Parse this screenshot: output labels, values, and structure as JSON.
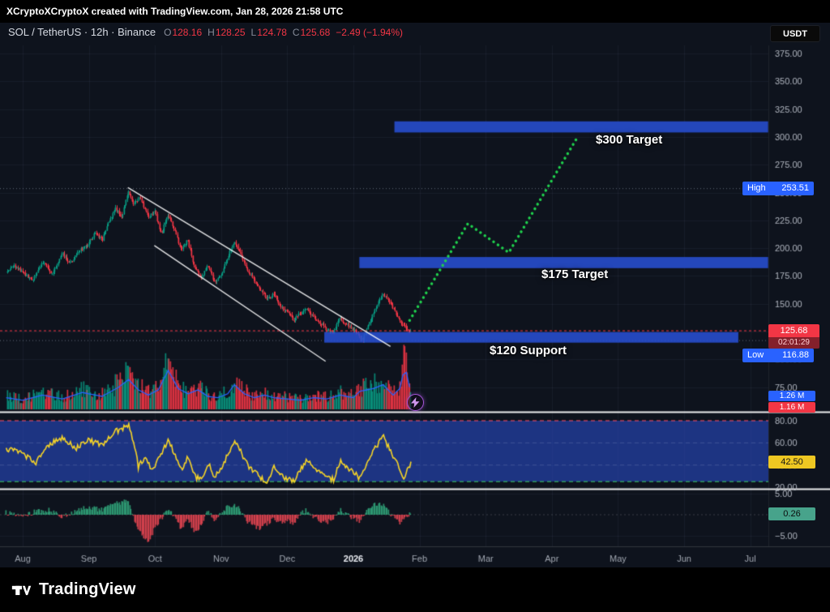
{
  "header": {
    "attribution": "XCryptoXCryptoX created with TradingView.com, Jan 28, 2026 21:58 UTC"
  },
  "symbol_bar": {
    "title_line": "SOL / TetherUS · 12h · Binance",
    "ohlc": {
      "o_label": "O",
      "o": "128.16",
      "h_label": "H",
      "h": "128.25",
      "l_label": "L",
      "l": "124.78",
      "c_label": "C",
      "c": "125.68"
    },
    "change": "−2.49 (−1.94%)",
    "currency_button": "USDT"
  },
  "badges": {
    "high_label": "High",
    "high_value": "253.51",
    "low_label": "Low",
    "low_value": "116.88",
    "price_value": "125.68",
    "countdown": "02:01:29",
    "volume_ma": "1.26 M",
    "volume_current": "1.16 M",
    "rsi_value": "42.50",
    "hist_value": "0.26"
  },
  "footer": {
    "brand": "TradingView"
  },
  "colors": {
    "chart_bg": "#0e131d",
    "grid": "rgba(140,155,190,0.08)",
    "up": "#089981",
    "down": "#f23645",
    "zone": "rgba(40,78,210,0.88)",
    "rsi_band": "rgba(41,80,214,0.55)",
    "rsi_line": "#f5d327",
    "rsi_upper_line": "#ff4d6a",
    "rsi_lower_line": "#3ecf62",
    "projection": "#1fd24d",
    "vol_ma": "#2962ff",
    "hist_up": "#2f9e77",
    "hist_down": "#dd4450",
    "axis_text": "#b0b5bf",
    "accent_blue": "#2962ff",
    "accent_red": "#f23645"
  },
  "chart_data": {
    "type": "candlestick",
    "symbol": "SOL/USDT",
    "interval": "12h",
    "t_unit": "months_from_aug_2025",
    "x_axis": {
      "months": [
        {
          "t": 0,
          "label": "Aug"
        },
        {
          "t": 1,
          "label": "Sep"
        },
        {
          "t": 2,
          "label": "Oct"
        },
        {
          "t": 3,
          "label": "Nov"
        },
        {
          "t": 4,
          "label": "Dec"
        },
        {
          "t": 5,
          "label": "2026",
          "strong": true
        },
        {
          "t": 6,
          "label": "Feb"
        },
        {
          "t": 7,
          "label": "Mar"
        },
        {
          "t": 8,
          "label": "Apr"
        },
        {
          "t": 9,
          "label": "May"
        },
        {
          "t": 10,
          "label": "Jun"
        },
        {
          "t": 11,
          "label": "Jul"
        }
      ]
    },
    "price_axis": {
      "ticks": [
        375,
        350,
        325,
        300,
        275,
        250,
        225,
        200,
        175,
        150,
        125,
        100,
        75
      ],
      "high": 253.51,
      "low": 116.88,
      "last": 125.68
    },
    "price_path": [
      [
        -0.25,
        178
      ],
      [
        -0.12,
        184
      ],
      [
        0,
        179
      ],
      [
        0.15,
        170
      ],
      [
        0.3,
        187
      ],
      [
        0.45,
        177
      ],
      [
        0.6,
        195
      ],
      [
        0.72,
        186
      ],
      [
        0.85,
        197
      ],
      [
        1,
        204
      ],
      [
        1.1,
        214
      ],
      [
        1.2,
        207
      ],
      [
        1.3,
        222
      ],
      [
        1.4,
        236
      ],
      [
        1.5,
        229
      ],
      [
        1.6,
        251
      ],
      [
        1.68,
        240
      ],
      [
        1.78,
        246
      ],
      [
        1.9,
        228
      ],
      [
        2,
        233
      ],
      [
        2.1,
        212
      ],
      [
        2.2,
        230
      ],
      [
        2.3,
        216
      ],
      [
        2.4,
        198
      ],
      [
        2.5,
        207
      ],
      [
        2.6,
        183
      ],
      [
        2.7,
        172
      ],
      [
        2.8,
        185
      ],
      [
        2.9,
        170
      ],
      [
        3,
        175
      ],
      [
        3.1,
        191
      ],
      [
        3.2,
        207
      ],
      [
        3.3,
        195
      ],
      [
        3.4,
        181
      ],
      [
        3.5,
        171
      ],
      [
        3.6,
        163
      ],
      [
        3.7,
        154
      ],
      [
        3.8,
        159
      ],
      [
        3.9,
        148
      ],
      [
        4,
        143
      ],
      [
        4.1,
        135
      ],
      [
        4.2,
        141
      ],
      [
        4.3,
        146
      ],
      [
        4.4,
        138
      ],
      [
        4.5,
        133
      ],
      [
        4.6,
        127
      ],
      [
        4.7,
        124
      ],
      [
        4.8,
        137
      ],
      [
        4.9,
        131
      ],
      [
        5,
        128
      ],
      [
        5.08,
        121
      ],
      [
        5.15,
        118
      ],
      [
        5.25,
        134
      ],
      [
        5.35,
        147
      ],
      [
        5.45,
        159
      ],
      [
        5.52,
        154
      ],
      [
        5.6,
        146
      ],
      [
        5.68,
        138
      ],
      [
        5.76,
        130
      ],
      [
        5.83,
        127
      ],
      [
        5.87,
        125.7
      ]
    ],
    "volume_path_millions": [
      [
        -0.25,
        0.9
      ],
      [
        0,
        0.7
      ],
      [
        0.3,
        1.1
      ],
      [
        0.6,
        0.8
      ],
      [
        0.9,
        1.3
      ],
      [
        1.2,
        1
      ],
      [
        1.45,
        1.7
      ],
      [
        1.6,
        2.3
      ],
      [
        1.75,
        1.5
      ],
      [
        1.9,
        1.1
      ],
      [
        2.05,
        1.5
      ],
      [
        2.2,
        3
      ],
      [
        2.35,
        1.6
      ],
      [
        2.5,
        1.2
      ],
      [
        2.65,
        1.5
      ],
      [
        2.8,
        1
      ],
      [
        2.95,
        0.9
      ],
      [
        3.1,
        1.2
      ],
      [
        3.2,
        1.9
      ],
      [
        3.35,
        1.2
      ],
      [
        3.5,
        0.9
      ],
      [
        3.65,
        1.1
      ],
      [
        3.8,
        0.9
      ],
      [
        4,
        0.8
      ],
      [
        4.2,
        0.7
      ],
      [
        4.4,
        0.9
      ],
      [
        4.6,
        0.8
      ],
      [
        4.8,
        1.1
      ],
      [
        5,
        0.9
      ],
      [
        5.1,
        1.4
      ],
      [
        5.3,
        1.6
      ],
      [
        5.45,
        1.9
      ],
      [
        5.6,
        1.1
      ],
      [
        5.7,
        1.6
      ],
      [
        5.78,
        3.3
      ],
      [
        5.87,
        1.26
      ]
    ],
    "rsi_path": [
      [
        -0.25,
        55
      ],
      [
        0,
        50
      ],
      [
        0.2,
        42
      ],
      [
        0.4,
        58
      ],
      [
        0.6,
        65
      ],
      [
        0.8,
        55
      ],
      [
        1,
        62
      ],
      [
        1.2,
        58
      ],
      [
        1.4,
        70
      ],
      [
        1.6,
        76
      ],
      [
        1.7,
        55
      ],
      [
        1.75,
        38
      ],
      [
        1.85,
        48
      ],
      [
        1.95,
        35
      ],
      [
        2.05,
        45
      ],
      [
        2.2,
        62
      ],
      [
        2.3,
        50
      ],
      [
        2.4,
        35
      ],
      [
        2.5,
        47
      ],
      [
        2.6,
        30
      ],
      [
        2.7,
        26
      ],
      [
        2.8,
        42
      ],
      [
        2.9,
        30
      ],
      [
        3,
        36
      ],
      [
        3.1,
        50
      ],
      [
        3.2,
        62
      ],
      [
        3.3,
        52
      ],
      [
        3.4,
        40
      ],
      [
        3.5,
        34
      ],
      [
        3.6,
        28
      ],
      [
        3.7,
        25
      ],
      [
        3.8,
        38
      ],
      [
        3.9,
        30
      ],
      [
        4,
        28
      ],
      [
        4.1,
        25
      ],
      [
        4.2,
        36
      ],
      [
        4.3,
        45
      ],
      [
        4.4,
        38
      ],
      [
        4.5,
        33
      ],
      [
        4.6,
        29
      ],
      [
        4.7,
        27
      ],
      [
        4.8,
        44
      ],
      [
        4.9,
        38
      ],
      [
        5,
        34
      ],
      [
        5.1,
        27
      ],
      [
        5.2,
        40
      ],
      [
        5.3,
        52
      ],
      [
        5.4,
        62
      ],
      [
        5.45,
        68
      ],
      [
        5.5,
        60
      ],
      [
        5.6,
        48
      ],
      [
        5.7,
        36
      ],
      [
        5.75,
        28
      ],
      [
        5.8,
        33
      ],
      [
        5.87,
        42.5
      ]
    ],
    "rsi_settings": {
      "upper_band": 80,
      "lower_band": 25,
      "ticks": [
        80,
        60,
        40,
        20
      ],
      "last": 42.5
    },
    "hist_path": [
      [
        -0.25,
        0.5
      ],
      [
        0,
        -0.4
      ],
      [
        0.2,
        0.8
      ],
      [
        0.4,
        1.2
      ],
      [
        0.6,
        -0.6
      ],
      [
        0.8,
        1
      ],
      [
        1,
        1.8
      ],
      [
        1.2,
        1.2
      ],
      [
        1.4,
        2.8
      ],
      [
        1.6,
        3.2
      ],
      [
        1.7,
        -1.5
      ],
      [
        1.8,
        -4.5
      ],
      [
        1.9,
        -6.5
      ],
      [
        2,
        -3
      ],
      [
        2.1,
        -1
      ],
      [
        2.2,
        1.5
      ],
      [
        2.3,
        -0.8
      ],
      [
        2.4,
        -3.5
      ],
      [
        2.5,
        -1.2
      ],
      [
        2.6,
        -3.8
      ],
      [
        2.7,
        -2.5
      ],
      [
        2.8,
        0.8
      ],
      [
        2.9,
        -1.2
      ],
      [
        3,
        0.5
      ],
      [
        3.1,
        1.8
      ],
      [
        3.2,
        2.6
      ],
      [
        3.3,
        1.2
      ],
      [
        3.4,
        -1.5
      ],
      [
        3.5,
        -2.8
      ],
      [
        3.6,
        -3.2
      ],
      [
        3.7,
        -2.2
      ],
      [
        3.8,
        -0.8
      ],
      [
        3.9,
        -1.8
      ],
      [
        4,
        -1.5
      ],
      [
        4.1,
        -1.9
      ],
      [
        4.2,
        0.4
      ],
      [
        4.3,
        1.1
      ],
      [
        4.4,
        -0.5
      ],
      [
        4.5,
        -1.4
      ],
      [
        4.6,
        -1.8
      ],
      [
        4.7,
        -1
      ],
      [
        4.8,
        1.2
      ],
      [
        4.9,
        0.3
      ],
      [
        5,
        -0.8
      ],
      [
        5.1,
        -1.6
      ],
      [
        5.2,
        0.9
      ],
      [
        5.3,
        2.2
      ],
      [
        5.4,
        2.8
      ],
      [
        5.5,
        1.6
      ],
      [
        5.6,
        -0.6
      ],
      [
        5.7,
        -1.8
      ],
      [
        5.75,
        -1.2
      ],
      [
        5.8,
        -0.4
      ],
      [
        5.87,
        0.26
      ]
    ],
    "hist_settings": {
      "ticks": [
        5,
        -5
      ],
      "last": 0.26
    },
    "zones": [
      {
        "label": "$300 Target",
        "price_top": 314,
        "price_bottom": 304,
        "t_start": 5.62,
        "t_end": 11.27
      },
      {
        "label": "$175 Target",
        "price_top": 192,
        "price_bottom": 182,
        "t_start": 5.09,
        "t_end": 11.27
      },
      {
        "label": "$120 Support",
        "price_top": 124.5,
        "price_bottom": 115,
        "t_start": 4.56,
        "t_end": 10.82
      }
    ],
    "trendlines": [
      {
        "points": [
          [
            1.59,
            254.5
          ],
          [
            5.56,
            111.6
          ]
        ]
      },
      {
        "points": [
          [
            1.99,
            202.4
          ],
          [
            4.58,
            98.2
          ]
        ]
      }
    ],
    "projection": [
      [
        5.85,
        135
      ],
      [
        6.73,
        222
      ],
      [
        7.35,
        196
      ],
      [
        8.38,
        299
      ]
    ]
  }
}
